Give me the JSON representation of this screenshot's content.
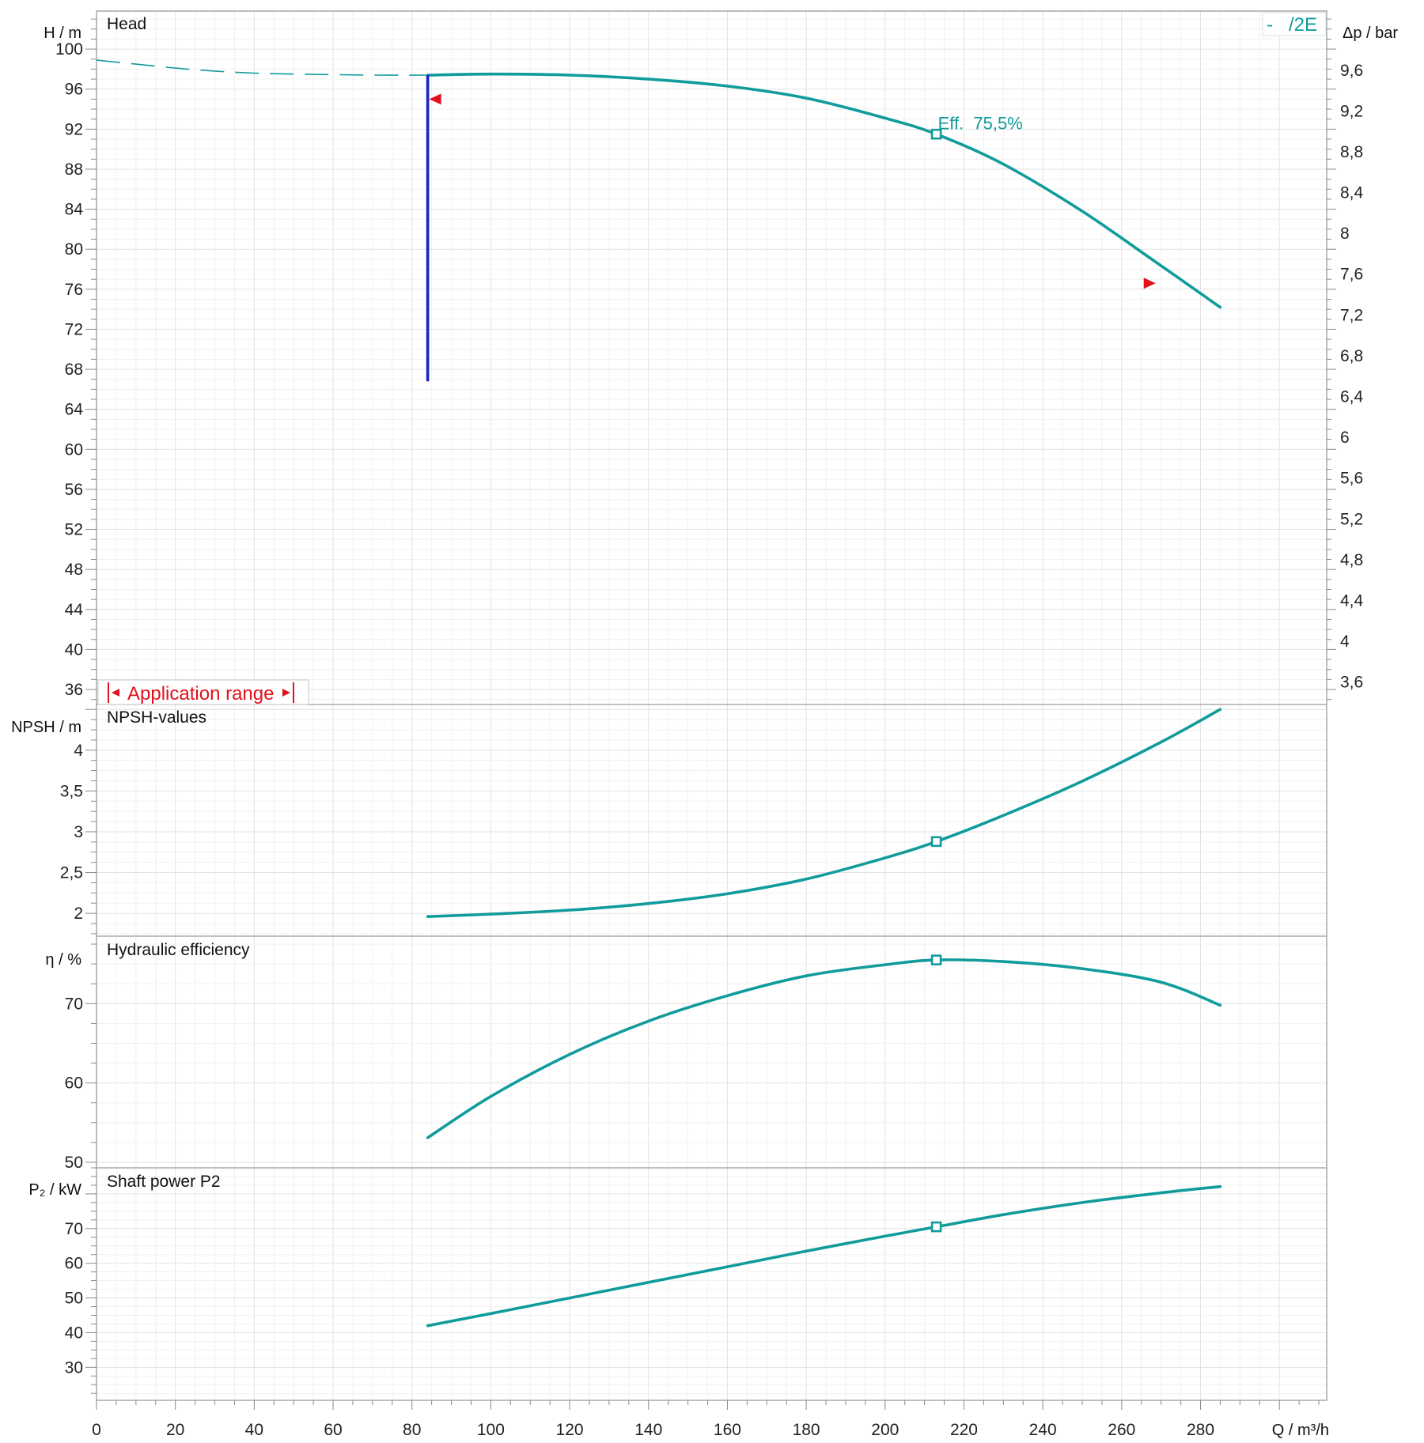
{
  "chart_data": {
    "type": "line",
    "x_axis": {
      "label": "Q / m³/h",
      "range": [
        0,
        312
      ],
      "ticks": [
        0,
        20,
        40,
        60,
        80,
        100,
        120,
        140,
        160,
        180,
        200,
        220,
        240,
        260,
        280
      ]
    },
    "legend": {
      "text": "-   /2E",
      "placement": "top-right"
    },
    "operating_point": {
      "Q": 213
    },
    "panels": [
      {
        "id": "head",
        "title": "Head",
        "y_axis": {
          "label": "H / m",
          "range": [
            34.5,
            103.8
          ],
          "ticks": [
            100,
            96,
            92,
            88,
            84,
            80,
            76,
            72,
            68,
            64,
            60,
            56,
            52,
            48,
            44,
            40,
            36
          ],
          "labels": [
            "100",
            "96",
            "92",
            "88",
            "84",
            "80",
            "76",
            "72",
            "68",
            "64",
            "60",
            "56",
            "52",
            "48",
            "44",
            "40",
            "36"
          ]
        },
        "y2_axis": {
          "label": "Δp / bar",
          "range": [
            3.38,
            10.18
          ],
          "ticks": [
            9.6,
            9.2,
            8.8,
            8.4,
            8.0,
            7.6,
            7.2,
            6.8,
            6.4,
            6.0,
            5.6,
            5.2,
            4.8,
            4.4,
            4.0,
            3.6
          ],
          "labels": [
            "9,6",
            "9,2",
            "8,8",
            "8,4",
            "8",
            "7,6",
            "7,2",
            "6,8",
            "6,4",
            "6",
            "5,6",
            "5,2",
            "4,8",
            "4,4",
            "4",
            "3,6"
          ]
        },
        "series": [
          {
            "style": "dashed",
            "x": [
              0,
              10,
              20,
              30,
              40,
              50,
              60,
              70,
              84
            ],
            "y": [
              98.9,
              98.5,
              98.1,
              97.8,
              97.6,
              97.5,
              97.45,
              97.4,
              97.4
            ]
          },
          {
            "style": "solid",
            "x": [
              84,
              100,
              120,
              140,
              160,
              180,
              200,
              213,
              230,
              250,
              268,
              285
            ],
            "y": [
              97.4,
              97.5,
              97.4,
              97.0,
              96.3,
              95.1,
              93.1,
              91.5,
              88.5,
              83.8,
              78.9,
              74.2
            ]
          }
        ],
        "min_flow_line": {
          "Q": 84,
          "H_from": 66.8,
          "H_to": 97.4
        },
        "range_markers": [
          {
            "Q": 86,
            "H": 95.0,
            "direction": "left"
          },
          {
            "Q": 267,
            "H": 76.6,
            "direction": "right"
          }
        ],
        "operating_point_value": 91.5,
        "annotation": "Eff.  75,5%",
        "range_label": "Application range"
      },
      {
        "id": "npsh",
        "title": "NPSH-values",
        "y_axis": {
          "label": "NPSH  / m",
          "range": [
            1.72,
            4.56
          ],
          "ticks": [
            4,
            3.5,
            3,
            2.5,
            2
          ],
          "labels": [
            "4",
            "3,5",
            "3",
            "2,5",
            "2"
          ]
        },
        "series": [
          {
            "style": "solid",
            "x": [
              84,
              100,
              120,
              140,
              160,
              180,
              200,
              213,
              230,
              250,
              270,
              285
            ],
            "y": [
              1.96,
              1.99,
              2.04,
              2.12,
              2.24,
              2.42,
              2.68,
              2.88,
              3.2,
              3.62,
              4.1,
              4.5
            ]
          }
        ],
        "operating_point_value": 2.88
      },
      {
        "id": "efficiency",
        "title": "Hydraulic efficiency",
        "y_axis": {
          "label": "η / %",
          "range": [
            49.3,
            78.5
          ],
          "ticks": [
            70,
            60,
            50
          ],
          "labels": [
            "70",
            "60",
            "50"
          ]
        },
        "series": [
          {
            "style": "solid",
            "x": [
              84,
              100,
              120,
              140,
              160,
              180,
              200,
              213,
              230,
              250,
              270,
              285
            ],
            "y": [
              53.1,
              58.3,
              63.6,
              67.8,
              71.0,
              73.5,
              74.9,
              75.5,
              75.3,
              74.4,
              72.7,
              69.8
            ]
          }
        ],
        "operating_point_value": 75.5
      },
      {
        "id": "power",
        "title": "Shaft power P2",
        "y_axis": {
          "label": "P₂ / kW",
          "range": [
            20.5,
            87.5
          ],
          "ticks": [
            70,
            60,
            50,
            40,
            30
          ],
          "labels": [
            "70",
            "60",
            "50",
            "40",
            "30"
          ]
        },
        "series": [
          {
            "style": "solid",
            "x": [
              84,
              100,
              120,
              140,
              160,
              180,
              200,
              213,
              230,
              250,
              270,
              285
            ],
            "y": [
              42.0,
              45.5,
              50.0,
              54.5,
              59.0,
              63.5,
              67.8,
              70.5,
              74.0,
              77.5,
              80.3,
              82.1
            ]
          }
        ],
        "operating_point_value": 70.5
      }
    ]
  }
}
